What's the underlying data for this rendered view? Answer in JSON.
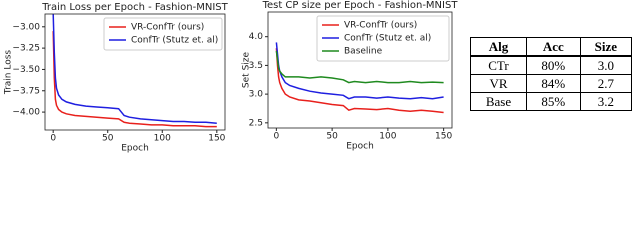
{
  "chart_data": [
    {
      "type": "line",
      "title": "Train Loss per Epoch - Fashion-MNIST",
      "xlabel": "Epoch",
      "ylabel": "Train Loss",
      "x": [
        0,
        1,
        2,
        3,
        5,
        8,
        12,
        20,
        30,
        40,
        50,
        60,
        65,
        70,
        80,
        90,
        100,
        110,
        120,
        130,
        140,
        150
      ],
      "series": [
        {
          "name": "VR-ConfTr (ours)",
          "color": "#e8201c",
          "values": [
            -3.05,
            -3.6,
            -3.85,
            -3.92,
            -3.97,
            -4.0,
            -4.02,
            -4.04,
            -4.05,
            -4.06,
            -4.07,
            -4.08,
            -4.12,
            -4.13,
            -4.14,
            -4.15,
            -4.15,
            -4.16,
            -4.16,
            -4.16,
            -4.17,
            -4.17
          ]
        },
        {
          "name": "ConfTr (Stutz et. al)",
          "color": "#1f1fe0",
          "values": [
            -2.85,
            -3.3,
            -3.6,
            -3.72,
            -3.8,
            -3.85,
            -3.88,
            -3.91,
            -3.93,
            -3.94,
            -3.95,
            -3.96,
            -4.04,
            -4.06,
            -4.08,
            -4.09,
            -4.1,
            -4.11,
            -4.11,
            -4.12,
            -4.12,
            -4.13
          ]
        }
      ],
      "xlim": [
        -7.5,
        157.5
      ],
      "xticks": [
        0,
        50,
        100,
        150
      ],
      "ylim": [
        -4.21,
        -2.85
      ],
      "yticks": [
        {
          "value": -3,
          "label": "−3.00"
        },
        {
          "value": -3.25,
          "label": "−3.25"
        },
        {
          "value": -3.5,
          "label": "−3.50"
        },
        {
          "value": -3.75,
          "label": "−3.75"
        },
        {
          "value": -4,
          "label": "−4.00"
        }
      ],
      "legend": "upper right"
    },
    {
      "type": "line",
      "title": "Test CP size per Epoch - Fashion-MNIST",
      "xlabel": "Epoch",
      "ylabel": "Set Size",
      "x": [
        0,
        1,
        2,
        3,
        5,
        8,
        12,
        20,
        30,
        40,
        50,
        60,
        65,
        70,
        80,
        90,
        100,
        110,
        120,
        130,
        140,
        150
      ],
      "series": [
        {
          "name": "VR-ConfTr (ours)",
          "color": "#e8201c",
          "values": [
            3.8,
            3.5,
            3.3,
            3.2,
            3.1,
            3.0,
            2.95,
            2.9,
            2.88,
            2.85,
            2.82,
            2.8,
            2.72,
            2.75,
            2.74,
            2.73,
            2.75,
            2.72,
            2.7,
            2.72,
            2.7,
            2.68
          ]
        },
        {
          "name": "ConfTr (Stutz et. al)",
          "color": "#1f1fe0",
          "values": [
            3.9,
            3.7,
            3.5,
            3.4,
            3.3,
            3.2,
            3.15,
            3.1,
            3.05,
            3.02,
            3.0,
            2.98,
            2.92,
            2.95,
            2.95,
            2.93,
            2.95,
            2.93,
            2.92,
            2.94,
            2.92,
            2.95
          ]
        },
        {
          "name": "Baseline",
          "color": "#1f8a1f",
          "values": [
            3.75,
            3.6,
            3.45,
            3.4,
            3.35,
            3.3,
            3.3,
            3.3,
            3.28,
            3.3,
            3.28,
            3.25,
            3.2,
            3.22,
            3.2,
            3.22,
            3.2,
            3.2,
            3.22,
            3.2,
            3.21,
            3.2
          ]
        }
      ],
      "xlim": [
        -7.5,
        157.5
      ],
      "xticks": [
        0,
        50,
        100,
        150
      ],
      "ylim": [
        2.41,
        4.43
      ],
      "yticks": [
        {
          "value": 2.5,
          "label": "2.5"
        },
        {
          "value": 3,
          "label": "3.0"
        },
        {
          "value": 3.5,
          "label": "3.5"
        },
        {
          "value": 4,
          "label": "4.0"
        }
      ],
      "legend": "upper right"
    }
  ],
  "table": {
    "header": [
      "Alg",
      "Acc",
      "Size"
    ],
    "rows": [
      [
        "CTr",
        "80%",
        "3.0"
      ],
      [
        "VR",
        "84%",
        "2.7"
      ],
      [
        "Base",
        "85%",
        "3.2"
      ]
    ]
  }
}
